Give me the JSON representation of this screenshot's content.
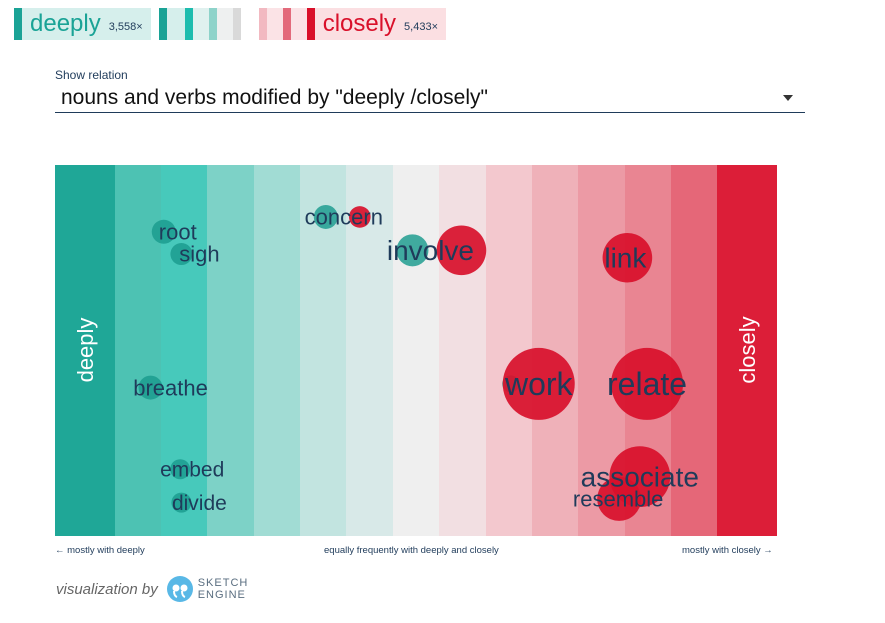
{
  "legend": {
    "left_word": "deeply",
    "left_count": "3,558×",
    "right_word": "closely",
    "right_count": "5,433×"
  },
  "relation": {
    "label": "Show relation",
    "value": "nouns and verbs modified by \"deeply /closely\""
  },
  "colors": {
    "bands": [
      "#1fa797",
      "#4dc2b3",
      "#47c9bb",
      "#7dd2c7",
      "#a1dcd4",
      "#c2e4e0",
      "#d8e9e8",
      "#efefef",
      "#f2dfe2",
      "#f3c8ce",
      "#efb1b9",
      "#ec9aa5",
      "#e98592",
      "#e56778",
      "#dc1e38"
    ],
    "left_dot": "#1a9b8d",
    "right_dot": "#d8102b",
    "word_text": "#1f3b5a"
  },
  "chart_data": {
    "type": "scatter",
    "left_side_label": "deeply",
    "right_side_label": "closely",
    "x_axis_notes": {
      "left": "← mostly with deeply",
      "center": "equally frequently with deeply and closely",
      "right": "mostly with closely →"
    },
    "words": [
      {
        "word": "root",
        "size": "medium",
        "left_freq": 3,
        "right_freq": 0,
        "pos": 0.17,
        "row": 0.18
      },
      {
        "word": "sigh",
        "size": "medium",
        "left_freq": 2,
        "right_freq": 0,
        "pos": 0.2,
        "row": 0.24
      },
      {
        "word": "concern",
        "size": "medium",
        "left_freq": 3,
        "right_freq": 1,
        "pos": 0.4,
        "row": 0.14
      },
      {
        "word": "involve",
        "size": "large",
        "left_freq": 4,
        "right_freq": 6,
        "pos": 0.52,
        "row": 0.23
      },
      {
        "word": "link",
        "size": "large",
        "left_freq": 0,
        "right_freq": 6,
        "pos": 0.79,
        "row": 0.25
      },
      {
        "word": "breathe",
        "size": "medium",
        "left_freq": 4,
        "right_freq": 0,
        "pos": 0.16,
        "row": 0.6
      },
      {
        "word": "work",
        "size": "xlarge",
        "left_freq": 1,
        "right_freq": 10,
        "pos": 0.67,
        "row": 0.59
      },
      {
        "word": "relate",
        "size": "xlarge",
        "left_freq": 0,
        "right_freq": 12,
        "pos": 0.82,
        "row": 0.59
      },
      {
        "word": "associate",
        "size": "large",
        "left_freq": 0,
        "right_freq": 8,
        "pos": 0.81,
        "row": 0.84
      },
      {
        "word": "resemble",
        "size": "medium",
        "left_freq": 0,
        "right_freq": 5,
        "pos": 0.78,
        "row": 0.9
      },
      {
        "word": "embed",
        "size": "small",
        "left_freq": 2,
        "right_freq": 0,
        "pos": 0.19,
        "row": 0.82
      },
      {
        "word": "divide",
        "size": "small",
        "left_freq": 2,
        "right_freq": 0,
        "pos": 0.2,
        "row": 0.91
      }
    ]
  },
  "credit": {
    "text": "visualization by",
    "logo_line1": "SKETCH",
    "logo_line2": "ENGINE"
  }
}
